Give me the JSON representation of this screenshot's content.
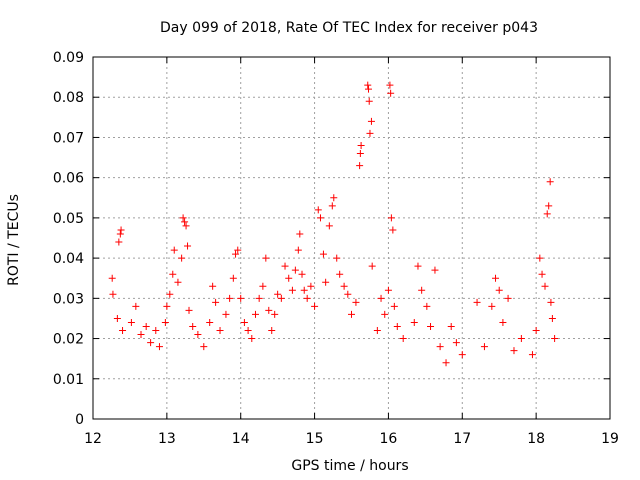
{
  "chart_data": {
    "type": "scatter",
    "title": "Day 099 of 2018, Rate Of TEC Index for receiver p043",
    "xlabel": "GPS time / hours",
    "ylabel": "ROTI / TECUs",
    "xlim": [
      12,
      19
    ],
    "ylim": [
      0,
      0.09
    ],
    "xticks": [
      12,
      13,
      14,
      15,
      16,
      17,
      18,
      19
    ],
    "xtick_labels": [
      "12",
      "13",
      "14",
      "15",
      "16",
      "17",
      "18",
      "19"
    ],
    "yticks": [
      0,
      0.01,
      0.02,
      0.03,
      0.04,
      0.05,
      0.06,
      0.07,
      0.08,
      0.09
    ],
    "ytick_labels": [
      "0",
      "0.01",
      "0.02",
      "0.03",
      "0.04",
      "0.05",
      "0.06",
      "0.07",
      "0.08",
      "0.09"
    ],
    "grid": true,
    "marker": "+",
    "color": "#ff0000",
    "series": [
      {
        "name": "ROTI",
        "points": [
          [
            12.26,
            0.035
          ],
          [
            12.27,
            0.031
          ],
          [
            12.35,
            0.044
          ],
          [
            12.37,
            0.046
          ],
          [
            12.38,
            0.047
          ],
          [
            12.33,
            0.025
          ],
          [
            12.4,
            0.022
          ],
          [
            12.52,
            0.024
          ],
          [
            12.58,
            0.028
          ],
          [
            12.65,
            0.021
          ],
          [
            12.72,
            0.023
          ],
          [
            12.78,
            0.019
          ],
          [
            12.85,
            0.022
          ],
          [
            12.9,
            0.018
          ],
          [
            12.98,
            0.024
          ],
          [
            13.0,
            0.028
          ],
          [
            13.04,
            0.031
          ],
          [
            13.08,
            0.036
          ],
          [
            13.1,
            0.042
          ],
          [
            13.15,
            0.034
          ],
          [
            13.2,
            0.04
          ],
          [
            13.22,
            0.05
          ],
          [
            13.24,
            0.049
          ],
          [
            13.26,
            0.048
          ],
          [
            13.28,
            0.043
          ],
          [
            13.3,
            0.027
          ],
          [
            13.35,
            0.023
          ],
          [
            13.42,
            0.021
          ],
          [
            13.5,
            0.018
          ],
          [
            13.58,
            0.024
          ],
          [
            13.62,
            0.033
          ],
          [
            13.66,
            0.029
          ],
          [
            13.72,
            0.022
          ],
          [
            13.8,
            0.026
          ],
          [
            13.85,
            0.03
          ],
          [
            13.9,
            0.035
          ],
          [
            13.93,
            0.041
          ],
          [
            13.96,
            0.042
          ],
          [
            14.0,
            0.03
          ],
          [
            14.05,
            0.024
          ],
          [
            14.1,
            0.022
          ],
          [
            14.15,
            0.02
          ],
          [
            14.2,
            0.026
          ],
          [
            14.25,
            0.03
          ],
          [
            14.3,
            0.033
          ],
          [
            14.34,
            0.04
          ],
          [
            14.38,
            0.027
          ],
          [
            14.42,
            0.022
          ],
          [
            14.46,
            0.026
          ],
          [
            14.5,
            0.031
          ],
          [
            14.55,
            0.03
          ],
          [
            14.6,
            0.038
          ],
          [
            14.65,
            0.035
          ],
          [
            14.7,
            0.032
          ],
          [
            14.74,
            0.037
          ],
          [
            14.78,
            0.042
          ],
          [
            14.8,
            0.046
          ],
          [
            14.83,
            0.036
          ],
          [
            14.86,
            0.032
          ],
          [
            14.9,
            0.03
          ],
          [
            14.95,
            0.033
          ],
          [
            15.0,
            0.028
          ],
          [
            15.05,
            0.052
          ],
          [
            15.08,
            0.05
          ],
          [
            15.12,
            0.041
          ],
          [
            15.15,
            0.034
          ],
          [
            15.2,
            0.048
          ],
          [
            15.24,
            0.053
          ],
          [
            15.26,
            0.055
          ],
          [
            15.3,
            0.04
          ],
          [
            15.34,
            0.036
          ],
          [
            15.4,
            0.033
          ],
          [
            15.45,
            0.031
          ],
          [
            15.5,
            0.026
          ],
          [
            15.56,
            0.029
          ],
          [
            15.61,
            0.063
          ],
          [
            15.62,
            0.066
          ],
          [
            15.63,
            0.068
          ],
          [
            15.72,
            0.083
          ],
          [
            15.73,
            0.082
          ],
          [
            15.74,
            0.079
          ],
          [
            15.75,
            0.071
          ],
          [
            15.77,
            0.074
          ],
          [
            15.78,
            0.038
          ],
          [
            15.85,
            0.022
          ],
          [
            15.9,
            0.03
          ],
          [
            15.95,
            0.026
          ],
          [
            16.0,
            0.032
          ],
          [
            16.02,
            0.083
          ],
          [
            16.03,
            0.081
          ],
          [
            16.04,
            0.05
          ],
          [
            16.06,
            0.047
          ],
          [
            16.08,
            0.028
          ],
          [
            16.12,
            0.023
          ],
          [
            16.2,
            0.02
          ],
          [
            16.35,
            0.024
          ],
          [
            16.4,
            0.038
          ],
          [
            16.45,
            0.032
          ],
          [
            16.52,
            0.028
          ],
          [
            16.57,
            0.023
          ],
          [
            16.63,
            0.037
          ],
          [
            16.7,
            0.018
          ],
          [
            16.78,
            0.014
          ],
          [
            16.85,
            0.023
          ],
          [
            16.92,
            0.019
          ],
          [
            17.0,
            0.016
          ],
          [
            17.2,
            0.029
          ],
          [
            17.3,
            0.018
          ],
          [
            17.4,
            0.028
          ],
          [
            17.45,
            0.035
          ],
          [
            17.5,
            0.032
          ],
          [
            17.55,
            0.024
          ],
          [
            17.62,
            0.03
          ],
          [
            17.7,
            0.017
          ],
          [
            17.8,
            0.02
          ],
          [
            17.95,
            0.016
          ],
          [
            18.0,
            0.022
          ],
          [
            18.05,
            0.04
          ],
          [
            18.08,
            0.036
          ],
          [
            18.12,
            0.033
          ],
          [
            18.15,
            0.051
          ],
          [
            18.17,
            0.053
          ],
          [
            18.19,
            0.059
          ],
          [
            18.2,
            0.029
          ],
          [
            18.22,
            0.025
          ],
          [
            18.25,
            0.02
          ]
        ]
      }
    ]
  }
}
